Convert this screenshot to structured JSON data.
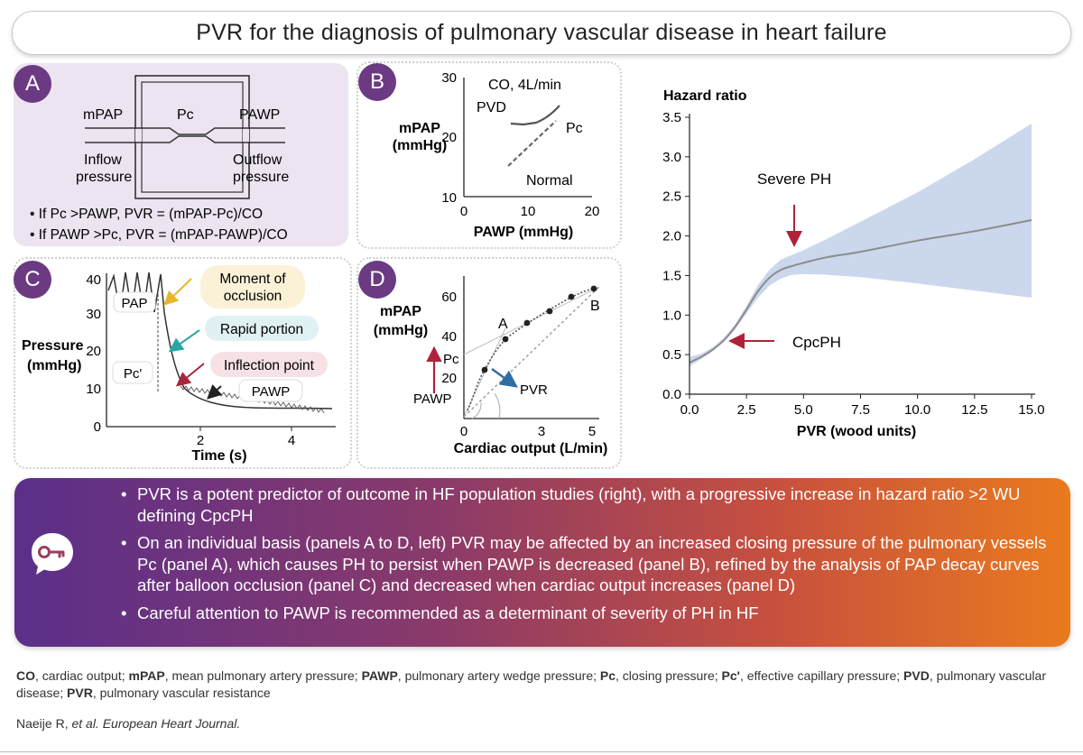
{
  "title": "PVR for the diagnosis of pulmonary vascular disease in heart failure",
  "panel_a": {
    "letter": "A",
    "labels": {
      "mpap": "mPAP",
      "pc": "Pc",
      "pawp": "PAWP",
      "inflow_1": "Inflow",
      "inflow_2": "pressure",
      "outflow_1": "Outflow",
      "outflow_2": "pressure"
    },
    "bullets": [
      "If Pc >PAWP, PVR = (mPAP-Pc)/CO",
      "If PAWP >Pc, PVR = (mPAP-PAWP)/CO"
    ]
  },
  "panel_b": {
    "letter": "B",
    "annotation_co": "CO, 4L/min",
    "label_pvd": "PVD",
    "label_pc": "Pc",
    "label_normal": "Normal",
    "ylabel_1": "mPAP",
    "ylabel_2": "(mmHg)",
    "xlabel": "PAWP (mmHg)",
    "yticks": [
      "10",
      "20",
      "30"
    ],
    "xticks": [
      "0",
      "10",
      "20"
    ]
  },
  "panel_c": {
    "letter": "C",
    "callout_occlusion_1": "Moment of",
    "callout_occlusion_2": "occlusion",
    "callout_rapid": "Rapid portion",
    "callout_inflection": "Inflection point",
    "label_pap": "PAP",
    "label_pc_prime": "Pc'",
    "label_pawp": "PAWP",
    "ylabel_1": "Pressure",
    "ylabel_2": "(mmHg)",
    "xlabel": "Time (s)",
    "yticks": [
      "0",
      "10",
      "20",
      "30",
      "40"
    ],
    "xticks": [
      "2",
      "4"
    ]
  },
  "panel_d": {
    "letter": "D",
    "ylabel_1": "mPAP",
    "ylabel_2": "(mmHg)",
    "xlabel": "Cardiac output (L/min)",
    "yticks": [
      "20",
      "40",
      "60"
    ],
    "xticks": [
      "0",
      "3",
      "5"
    ],
    "label_a": "A",
    "label_b": "B",
    "label_pc": "Pc",
    "label_pawp": "PAWP",
    "label_pvr": "PVR",
    "colors": {
      "pvr_arrow": "#2e6ca4",
      "pc_arrow": "#b0223a"
    }
  },
  "chart_data": {
    "type": "line",
    "title": "",
    "xlabel": "PVR (wood units)",
    "ylabel": "Hazard ratio",
    "xlim": [
      0,
      15
    ],
    "ylim": [
      0,
      3.5
    ],
    "xticks": [
      "0.0",
      "2.5",
      "5.0",
      "7.5",
      "10.0",
      "12.5",
      "15.0"
    ],
    "yticks": [
      "0.0",
      "0.5",
      "1.0",
      "1.5",
      "2.0",
      "2.5",
      "3.0",
      "3.5"
    ],
    "series": [
      {
        "x": [
          0,
          0.5,
          1.0,
          1.5,
          2.0,
          2.5,
          3.0,
          3.5,
          4.0,
          4.5,
          5.0,
          6.0,
          7.5,
          10.0,
          12.5,
          15.0
        ],
        "y": [
          0.4,
          0.47,
          0.56,
          0.68,
          0.85,
          1.07,
          1.3,
          1.47,
          1.57,
          1.62,
          1.66,
          1.73,
          1.8,
          1.94,
          2.06,
          2.2
        ],
        "lower": [
          0.35,
          0.44,
          0.54,
          0.66,
          0.82,
          1.02,
          1.22,
          1.37,
          1.46,
          1.51,
          1.52,
          1.51,
          1.48,
          1.4,
          1.31,
          1.22
        ],
        "upper": [
          0.47,
          0.51,
          0.59,
          0.71,
          0.88,
          1.12,
          1.38,
          1.57,
          1.7,
          1.76,
          1.82,
          1.96,
          2.18,
          2.55,
          2.97,
          3.42
        ]
      }
    ],
    "annotations": [
      {
        "text": "Severe PH",
        "x": 4.7,
        "y": 1.68
      },
      {
        "text": "CpcPH",
        "x": 1.9,
        "y": 0.68
      }
    ],
    "colors": {
      "band": "#cbd7ec",
      "line": "#8c8c8c",
      "arrow": "#b0223a"
    }
  },
  "key_points": [
    "PVR is a potent predictor of outcome in HF population studies (right), with a progressive increase in hazard ratio >2 WU defining CpcPH",
    "On an individual basis (panels A to D, left) PVR may be affected by an increased closing pressure of the pulmonary vessels Pc (panel A), which causes PH to persist when PAWP is decreased (panel B), refined by the analysis of PAP decay curves after balloon occlusion (panel C) and decreased when cardiac output increases (panel D)",
    "Careful attention to PAWP is recommended as a determinant of severity of PH in HF"
  ],
  "key_icon": "key-speech-bubble-icon",
  "footnote": [
    {
      "abbr": "CO",
      "text": ", cardiac output; "
    },
    {
      "abbr": "mPAP",
      "text": ", mean pulmonary artery pressure; "
    },
    {
      "abbr": "PAWP",
      "text": ", pulmonary artery wedge pressure; "
    },
    {
      "abbr": "Pc",
      "text": ", closing pressure; "
    },
    {
      "abbr": "Pc'",
      "text": ", effective capillary pressure; "
    },
    {
      "abbr": "PVD",
      "text": ", pulmonary vascular disease; "
    },
    {
      "abbr": "PVR",
      "text": ", pulmonary vascular resistance"
    }
  ],
  "citation_author": "Naeije R, ",
  "citation_journal": "et al. European Heart Journal."
}
